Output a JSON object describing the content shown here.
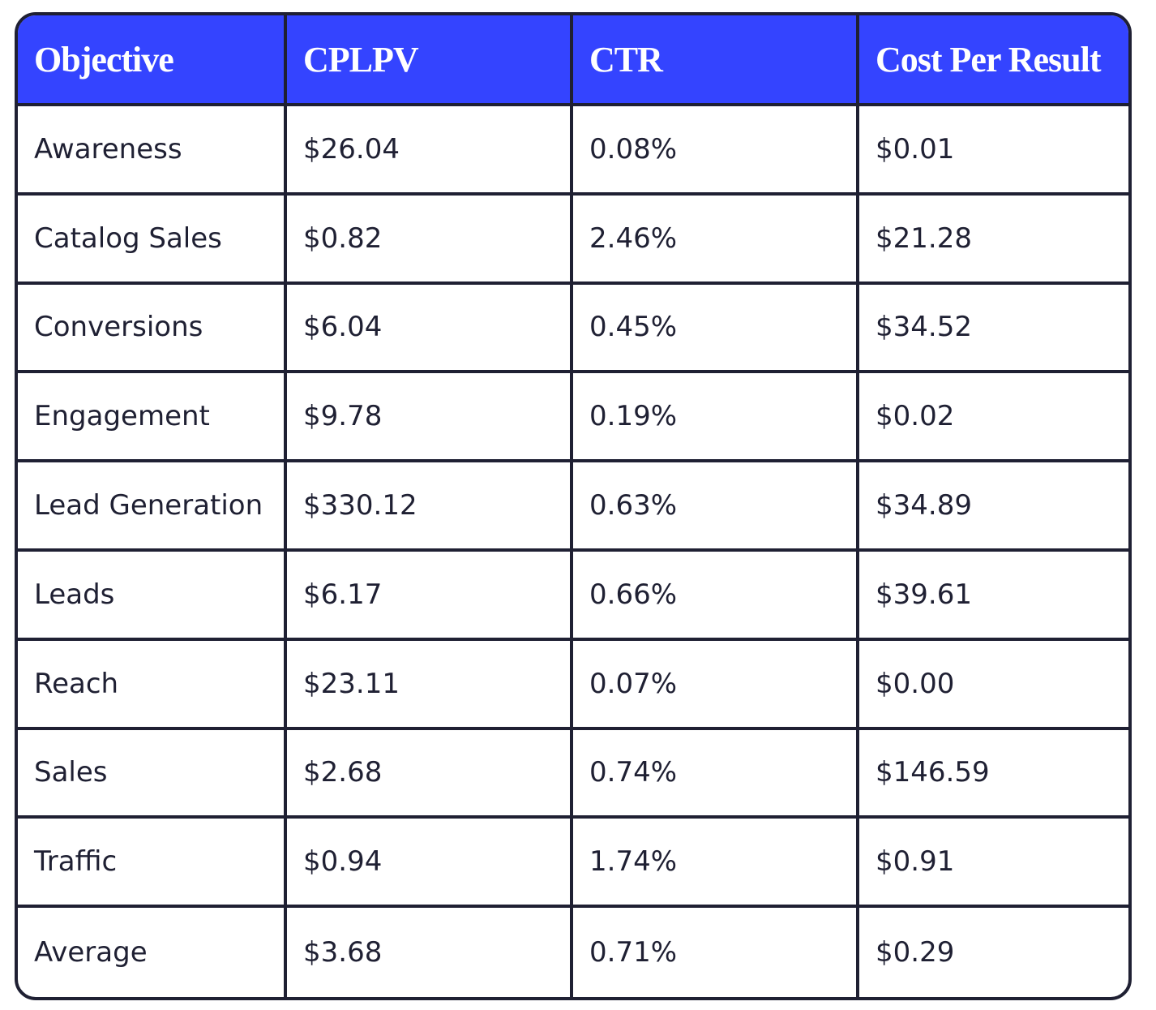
{
  "table": {
    "header": [
      "Objective",
      "CPLPV",
      "CTR",
      "Cost Per Result"
    ],
    "rows": [
      [
        "Awareness",
        "$26.04",
        "0.08%",
        "$0.01"
      ],
      [
        "Catalog Sales",
        "$0.82",
        "2.46%",
        "$21.28"
      ],
      [
        "Conversions",
        "$6.04",
        "0.45%",
        "$34.52"
      ],
      [
        "Engagement",
        "$9.78",
        "0.19%",
        "$0.02"
      ],
      [
        "Lead Generation",
        "$330.12",
        "0.63%",
        "$34.89"
      ],
      [
        "Leads",
        "$6.17",
        "0.66%",
        "$39.61"
      ],
      [
        "Reach",
        "$23.11",
        "0.07%",
        "$0.00"
      ],
      [
        "Sales",
        "$2.68",
        "0.74%",
        "$146.59"
      ],
      [
        "Traffic",
        "$0.94",
        "1.74%",
        "$0.91"
      ],
      [
        "Average",
        "$3.68",
        "0.71%",
        "$0.29"
      ]
    ]
  }
}
